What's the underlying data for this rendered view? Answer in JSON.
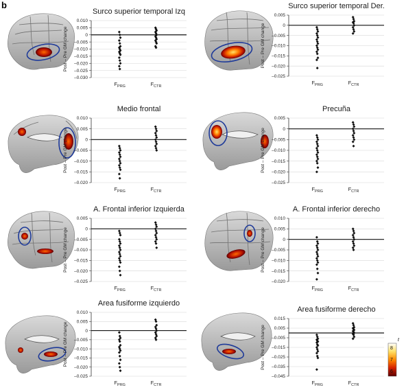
{
  "figure": {
    "panel_letter": "b",
    "y_axis_label": "Post – Pre GM change",
    "colorbar": {
      "title": "t",
      "labels": [
        "8",
        "7",
        "6"
      ],
      "colors": [
        "#ffffff",
        "#ffe066",
        "#ff8a00",
        "#d42000",
        "#5a0000"
      ]
    }
  },
  "chart_data": [
    {
      "type": "scatter",
      "title": "Surco superior temporal Izq",
      "categories": [
        {
          "main": "F",
          "sub": "PRG"
        },
        {
          "main": "F",
          "sub": "CTR"
        }
      ],
      "ylim": [
        -0.03,
        0.01
      ],
      "yticks": [
        "0.010",
        "0.005",
        "0",
        "–0.005",
        "–0.010",
        "–0.015",
        "–0.020",
        "–0.025",
        "–0.030"
      ],
      "series": [
        {
          "values": [
            0.002,
            0.0,
            -0.002,
            -0.004,
            -0.006,
            -0.008,
            -0.009,
            -0.01,
            -0.011,
            -0.012,
            -0.013,
            -0.014,
            -0.016,
            -0.018,
            -0.02,
            -0.022,
            -0.024
          ]
        },
        {
          "values": [
            0.005,
            0.004,
            0.003,
            0.002,
            0.001,
            0.0,
            -0.001,
            -0.002,
            -0.003,
            -0.004,
            -0.005,
            -0.006,
            -0.008,
            -0.009
          ]
        }
      ]
    },
    {
      "type": "scatter",
      "title": "Surco superior temporal Der.",
      "categories": [
        {
          "main": "F",
          "sub": "PRG"
        },
        {
          "main": "F",
          "sub": "CTR"
        }
      ],
      "ylim": [
        -0.025,
        0.005
      ],
      "yticks": [
        "0.005",
        "0",
        "–0.005",
        "–0.010",
        "–0.015",
        "–0.020",
        "–0.025"
      ],
      "series": [
        {
          "values": [
            -0.001,
            -0.002,
            -0.003,
            -0.004,
            -0.005,
            -0.006,
            -0.007,
            -0.008,
            -0.009,
            -0.01,
            -0.011,
            -0.012,
            -0.013,
            -0.014,
            -0.016,
            -0.017,
            -0.021
          ]
        },
        {
          "values": [
            0.004,
            0.003,
            0.002,
            0.0015,
            0.001,
            0.0,
            -0.001,
            -0.002,
            -0.003,
            -0.004
          ]
        }
      ]
    },
    {
      "type": "scatter",
      "title": "Medio frontal",
      "categories": [
        {
          "main": "F",
          "sub": "PRG"
        },
        {
          "main": "F",
          "sub": "CTR"
        }
      ],
      "ylim": [
        -0.02,
        0.01
      ],
      "yticks": [
        "0.010",
        "0.005",
        "0",
        "–0.005",
        "–0.010",
        "–0.015",
        "–0.020"
      ],
      "series": [
        {
          "values": [
            -0.003,
            -0.004,
            -0.005,
            -0.006,
            -0.007,
            -0.008,
            -0.009,
            -0.01,
            -0.011,
            -0.012,
            -0.013,
            -0.014,
            -0.016,
            -0.018
          ]
        },
        {
          "values": [
            0.006,
            0.005,
            0.004,
            0.003,
            0.002,
            0.001,
            0.0,
            -0.001,
            -0.002,
            -0.003,
            -0.004,
            -0.005
          ]
        }
      ]
    },
    {
      "type": "scatter",
      "title": "Precuña",
      "categories": [
        {
          "main": "F",
          "sub": "PRG"
        },
        {
          "main": "F",
          "sub": "CTR"
        }
      ],
      "ylim": [
        -0.025,
        0.005
      ],
      "yticks": [
        "0.005",
        "0",
        "–0.005",
        "–0.010",
        "–0.015",
        "–0.020",
        "–0.025"
      ],
      "series": [
        {
          "values": [
            -0.003,
            -0.004,
            -0.005,
            -0.006,
            -0.007,
            -0.008,
            -0.009,
            -0.01,
            -0.011,
            -0.012,
            -0.013,
            -0.014,
            -0.015,
            -0.016,
            -0.018,
            -0.02
          ]
        },
        {
          "values": [
            0.003,
            0.002,
            0.001,
            0.0,
            -0.001,
            -0.002,
            -0.003,
            -0.004,
            -0.005,
            -0.006,
            -0.008
          ]
        }
      ]
    },
    {
      "type": "scatter",
      "title": "A. Frontal inferior Izquierda",
      "categories": [
        {
          "main": "F",
          "sub": "PRG"
        },
        {
          "main": "F",
          "sub": "CTR"
        }
      ],
      "ylim": [
        -0.025,
        0.005
      ],
      "yticks": [
        "0.005",
        "0",
        "–0.005",
        "–0.010",
        "–0.015",
        "–0.020",
        "–0.025"
      ],
      "series": [
        {
          "values": [
            -0.001,
            -0.002,
            -0.003,
            -0.005,
            -0.006,
            -0.007,
            -0.008,
            -0.009,
            -0.01,
            -0.011,
            -0.012,
            -0.013,
            -0.014,
            -0.015,
            -0.016,
            -0.018,
            -0.02,
            -0.022
          ]
        },
        {
          "values": [
            0.003,
            0.002,
            0.001,
            0.0,
            -0.001,
            -0.002,
            -0.003,
            -0.004,
            -0.005,
            -0.006,
            -0.007,
            -0.009
          ]
        }
      ]
    },
    {
      "type": "scatter",
      "title": "A. Frontal inferior derecho",
      "categories": [
        {
          "main": "F",
          "sub": "PRG"
        },
        {
          "main": "F",
          "sub": "CTR"
        }
      ],
      "ylim": [
        -0.02,
        0.01
      ],
      "yticks": [
        "0.010",
        "0.005",
        "0",
        "–0.005",
        "–0.010",
        "–0.015",
        "–0.020"
      ],
      "series": [
        {
          "values": [
            0.001,
            -0.001,
            -0.002,
            -0.003,
            -0.004,
            -0.005,
            -0.006,
            -0.007,
            -0.008,
            -0.009,
            -0.01,
            -0.011,
            -0.012,
            -0.014,
            -0.016,
            -0.019
          ]
        },
        {
          "values": [
            0.005,
            0.004,
            0.003,
            0.002,
            0.001,
            0.0,
            -0.001,
            -0.002,
            -0.003,
            -0.004,
            -0.005
          ]
        }
      ]
    },
    {
      "type": "scatter",
      "title": "Area fusiforme izquierdo",
      "categories": [
        {
          "main": "F",
          "sub": "PRG"
        },
        {
          "main": "F",
          "sub": "CTR"
        }
      ],
      "ylim": [
        -0.025,
        0.01
      ],
      "yticks": [
        "0.010",
        "0.005",
        "0",
        "–0.005",
        "–0.010",
        "–0.015",
        "–0.020",
        "–0.025"
      ],
      "series": [
        {
          "values": [
            -0.001,
            -0.003,
            -0.004,
            -0.005,
            -0.006,
            -0.008,
            -0.009,
            -0.01,
            -0.011,
            -0.012,
            -0.014,
            -0.016,
            -0.018,
            -0.02,
            -0.022
          ]
        },
        {
          "values": [
            0.006,
            0.005,
            0.003,
            0.002,
            0.001,
            0.0,
            -0.001,
            -0.002,
            -0.003,
            -0.004,
            -0.005
          ]
        }
      ]
    },
    {
      "type": "scatter",
      "title": "Area fusiforme derecho",
      "categories": [
        {
          "main": "F",
          "sub": "PRG"
        },
        {
          "main": "F",
          "sub": "CTR"
        }
      ],
      "ylim": [
        -0.045,
        0.015
      ],
      "yticks": [
        "0.015",
        "0.005",
        "–0.005",
        "–0.015",
        "–0.025",
        "–0.035",
        "–0.045"
      ],
      "series": [
        {
          "values": [
            -0.002,
            -0.004,
            -0.006,
            -0.007,
            -0.008,
            -0.009,
            -0.01,
            -0.012,
            -0.013,
            -0.015,
            -0.017,
            -0.019,
            -0.021,
            -0.024,
            -0.026,
            -0.038
          ]
        },
        {
          "values": [
            0.01,
            0.008,
            0.006,
            0.005,
            0.004,
            0.003,
            0.002,
            0.001,
            0.0,
            -0.001,
            -0.002,
            -0.004,
            -0.006
          ]
        }
      ]
    }
  ]
}
